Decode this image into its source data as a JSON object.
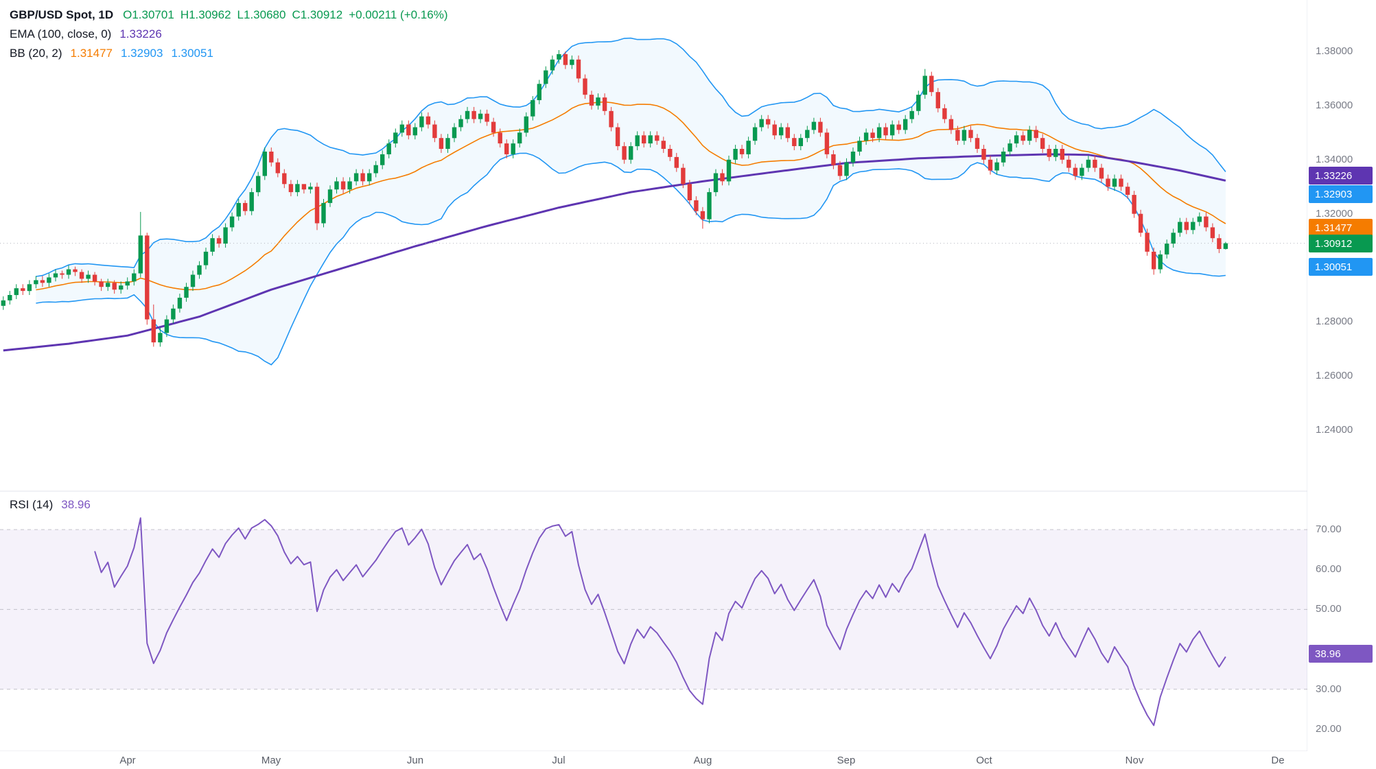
{
  "header": {
    "symbol": "GBP/USD Spot, 1D",
    "o": "O1.30701",
    "h": "H1.30962",
    "l": "L1.30680",
    "c": "C1.30912",
    "change": "+0.00211 (+0.16%)",
    "ema_name": "EMA (100, close, 0)",
    "ema_value": "1.33226",
    "bb_name": "BB (20, 2)",
    "bb_basis": "1.31477",
    "bb_upper": "1.32903",
    "bb_lower": "1.30051"
  },
  "rsi_header": {
    "name": "RSI (14)",
    "value": "38.96"
  },
  "price_axis": {
    "labels": [
      {
        "text": "1.38000",
        "price": 1.38
      },
      {
        "text": "1.36000",
        "price": 1.36
      },
      {
        "text": "1.34000",
        "price": 1.34
      },
      {
        "text": "1.32000",
        "price": 1.32
      },
      {
        "text": "1.28000",
        "price": 1.28
      },
      {
        "text": "1.26000",
        "price": 1.26
      },
      {
        "text": "1.24000",
        "price": 1.24
      }
    ]
  },
  "rsi_axis": {
    "labels": [
      {
        "text": "70.00",
        "value": 70
      },
      {
        "text": "60.00",
        "value": 60
      },
      {
        "text": "50.00",
        "value": 50
      },
      {
        "text": "30.00",
        "value": 30
      },
      {
        "text": "20.00",
        "value": 20
      }
    ]
  },
  "tags": {
    "ema": {
      "text": "1.33226",
      "price": 1.33226,
      "color": "#5e35b1"
    },
    "bb_upper": {
      "text": "1.32903",
      "price": 1.32903,
      "color": "#2196f3"
    },
    "bb_basis": {
      "text": "1.31477",
      "price": 1.31477,
      "color": "#f57c00"
    },
    "last": {
      "text": "1.30912",
      "price": 1.30912,
      "color": "#089950"
    },
    "bb_lower": {
      "text": "1.30051",
      "price": 1.30051,
      "color": "#2196f3"
    },
    "rsi": {
      "text": "38.96",
      "value": 38.96,
      "color": "#7e57c2"
    }
  },
  "colors": {
    "up": "#089950",
    "down": "#e23b3b",
    "bb_line": "#2196f3",
    "bb_fill": "rgba(33,150,243,0.06)",
    "bb_basis": "#f57c00",
    "ema": "#5e35b1",
    "rsi": "#7e57c2",
    "rsi_fill": "rgba(126,87,194,0.08)",
    "axis_text": "#787b86",
    "grid": "#e0e3eb",
    "last_price_line": "#b2b5be"
  },
  "chart_data": {
    "type": "candlestick",
    "title": "GBP/USD Spot, 1D",
    "interval": "1D",
    "ohlc_last": {
      "open": 1.30701,
      "high": 1.30962,
      "low": 1.3068,
      "close": 1.30912,
      "change": 0.00211,
      "change_pct": 0.16
    },
    "price_axis_ticks": [
      1.38,
      1.36,
      1.34,
      1.32,
      1.28,
      1.26,
      1.24
    ],
    "rsi_axis_ticks": [
      70,
      60,
      50,
      30,
      20
    ],
    "x_months": [
      {
        "label": "Apr",
        "index": 19
      },
      {
        "label": "May",
        "index": 41
      },
      {
        "label": "Jun",
        "index": 63
      },
      {
        "label": "Jul",
        "index": 85
      },
      {
        "label": "Aug",
        "index": 107
      },
      {
        "label": "Sep",
        "index": 129
      },
      {
        "label": "Oct",
        "index": 150
      },
      {
        "label": "Nov",
        "index": 173
      },
      {
        "label": "De",
        "index": 195
      }
    ],
    "candles": [
      [
        1.286,
        1.2895,
        1.2845,
        1.288
      ],
      [
        1.288,
        1.2915,
        1.2865,
        1.29
      ],
      [
        1.29,
        1.294,
        1.2885,
        1.2925
      ],
      [
        1.2925,
        1.294,
        1.29,
        1.2915
      ],
      [
        1.2915,
        1.2955,
        1.29,
        1.294
      ],
      [
        1.294,
        1.297,
        1.2925,
        1.2955
      ],
      [
        1.2955,
        1.297,
        1.293,
        1.2945
      ],
      [
        1.2945,
        1.298,
        1.293,
        1.2965
      ],
      [
        1.2965,
        1.2995,
        1.295,
        1.298
      ],
      [
        1.298,
        1.299,
        1.296,
        1.2975
      ],
      [
        1.2975,
        1.301,
        1.296,
        1.2995
      ],
      [
        1.2995,
        1.3005,
        1.297,
        1.2985
      ],
      [
        1.2985,
        1.2995,
        1.2945,
        1.296
      ],
      [
        1.296,
        1.299,
        1.2945,
        1.2975
      ],
      [
        1.2975,
        1.2985,
        1.2935,
        1.295
      ],
      [
        1.295,
        1.296,
        1.2915,
        1.293
      ],
      [
        1.293,
        1.296,
        1.2915,
        1.2945
      ],
      [
        1.2945,
        1.2955,
        1.2905,
        1.292
      ],
      [
        1.292,
        1.295,
        1.2905,
        1.2935
      ],
      [
        1.2935,
        1.2965,
        1.292,
        1.295
      ],
      [
        1.295,
        1.2995,
        1.2935,
        1.298
      ],
      [
        1.298,
        1.3207,
        1.2965,
        1.312
      ],
      [
        1.312,
        1.313,
        1.279,
        1.281
      ],
      [
        1.281,
        1.2865,
        1.2709,
        1.2725
      ],
      [
        1.2725,
        1.278,
        1.2709,
        1.276
      ],
      [
        1.276,
        1.2825,
        1.2745,
        1.281
      ],
      [
        1.281,
        1.2865,
        1.2795,
        1.285
      ],
      [
        1.285,
        1.2905,
        1.2835,
        1.289
      ],
      [
        1.289,
        1.2945,
        1.2875,
        1.293
      ],
      [
        1.293,
        1.299,
        1.2915,
        1.2975
      ],
      [
        1.2975,
        1.3025,
        1.296,
        1.301
      ],
      [
        1.301,
        1.3075,
        1.2995,
        1.306
      ],
      [
        1.306,
        1.3125,
        1.3045,
        1.311
      ],
      [
        1.311,
        1.312,
        1.3075,
        1.309
      ],
      [
        1.309,
        1.3165,
        1.3075,
        1.315
      ],
      [
        1.315,
        1.3205,
        1.3135,
        1.319
      ],
      [
        1.319,
        1.3255,
        1.3175,
        1.324
      ],
      [
        1.324,
        1.325,
        1.3195,
        1.321
      ],
      [
        1.321,
        1.3295,
        1.3195,
        1.328
      ],
      [
        1.328,
        1.3355,
        1.3265,
        1.334
      ],
      [
        1.334,
        1.3445,
        1.3325,
        1.343
      ],
      [
        1.343,
        1.3445,
        1.3375,
        1.339
      ],
      [
        1.339,
        1.3405,
        1.3335,
        1.335
      ],
      [
        1.335,
        1.3365,
        1.3295,
        1.331
      ],
      [
        1.331,
        1.3325,
        1.3265,
        1.328
      ],
      [
        1.328,
        1.3325,
        1.3265,
        1.331
      ],
      [
        1.331,
        1.3305,
        1.3275,
        1.329
      ],
      [
        1.329,
        1.3315,
        1.3275,
        1.33
      ],
      [
        1.33,
        1.3315,
        1.314,
        1.3165
      ],
      [
        1.3165,
        1.3255,
        1.315,
        1.324
      ],
      [
        1.324,
        1.3305,
        1.3225,
        1.329
      ],
      [
        1.329,
        1.3335,
        1.3275,
        1.332
      ],
      [
        1.332,
        1.3335,
        1.3275,
        1.329
      ],
      [
        1.329,
        1.3335,
        1.3275,
        1.332
      ],
      [
        1.332,
        1.3365,
        1.3305,
        1.335
      ],
      [
        1.335,
        1.3365,
        1.3305,
        1.332
      ],
      [
        1.332,
        1.3365,
        1.3305,
        1.335
      ],
      [
        1.335,
        1.3395,
        1.3335,
        1.338
      ],
      [
        1.338,
        1.3435,
        1.3365,
        1.342
      ],
      [
        1.342,
        1.3475,
        1.3405,
        1.346
      ],
      [
        1.346,
        1.3515,
        1.3445,
        1.35
      ],
      [
        1.35,
        1.3545,
        1.3485,
        1.353
      ],
      [
        1.353,
        1.3545,
        1.3475,
        1.349
      ],
      [
        1.349,
        1.3535,
        1.3475,
        1.352
      ],
      [
        1.352,
        1.3575,
        1.3505,
        1.356
      ],
      [
        1.356,
        1.3575,
        1.3515,
        1.353
      ],
      [
        1.353,
        1.3545,
        1.3465,
        1.348
      ],
      [
        1.348,
        1.3495,
        1.3425,
        1.344
      ],
      [
        1.344,
        1.3495,
        1.3425,
        1.348
      ],
      [
        1.348,
        1.3535,
        1.3465,
        1.352
      ],
      [
        1.352,
        1.3565,
        1.3505,
        1.355
      ],
      [
        1.355,
        1.3595,
        1.3535,
        1.358
      ],
      [
        1.358,
        1.3595,
        1.3535,
        1.355
      ],
      [
        1.355,
        1.3585,
        1.3535,
        1.357
      ],
      [
        1.357,
        1.3585,
        1.3525,
        1.354
      ],
      [
        1.354,
        1.3555,
        1.3485,
        1.35
      ],
      [
        1.35,
        1.3515,
        1.3445,
        1.346
      ],
      [
        1.346,
        1.3475,
        1.3405,
        1.342
      ],
      [
        1.342,
        1.3475,
        1.3405,
        1.346
      ],
      [
        1.346,
        1.3515,
        1.3445,
        1.35
      ],
      [
        1.35,
        1.3575,
        1.3485,
        1.356
      ],
      [
        1.356,
        1.3635,
        1.3545,
        1.362
      ],
      [
        1.362,
        1.3695,
        1.3605,
        1.368
      ],
      [
        1.368,
        1.3745,
        1.3665,
        1.373
      ],
      [
        1.373,
        1.3785,
        1.3715,
        1.377
      ],
      [
        1.377,
        1.3805,
        1.3755,
        1.379
      ],
      [
        1.379,
        1.38,
        1.3735,
        1.375
      ],
      [
        1.375,
        1.3785,
        1.3735,
        1.377
      ],
      [
        1.377,
        1.3785,
        1.3685,
        1.37
      ],
      [
        1.37,
        1.3715,
        1.3625,
        1.364
      ],
      [
        1.364,
        1.3655,
        1.3585,
        1.36
      ],
      [
        1.36,
        1.3645,
        1.3585,
        1.363
      ],
      [
        1.363,
        1.3645,
        1.3565,
        1.358
      ],
      [
        1.358,
        1.3595,
        1.3505,
        1.352
      ],
      [
        1.352,
        1.3535,
        1.3435,
        1.345
      ],
      [
        1.345,
        1.3465,
        1.3385,
        1.34
      ],
      [
        1.34,
        1.3465,
        1.3385,
        1.345
      ],
      [
        1.345,
        1.3505,
        1.3435,
        1.349
      ],
      [
        1.349,
        1.3505,
        1.3445,
        1.346
      ],
      [
        1.346,
        1.3505,
        1.3445,
        1.349
      ],
      [
        1.349,
        1.3505,
        1.3455,
        1.347
      ],
      [
        1.347,
        1.3485,
        1.3425,
        1.344
      ],
      [
        1.344,
        1.3455,
        1.3395,
        1.341
      ],
      [
        1.341,
        1.3425,
        1.3355,
        1.337
      ],
      [
        1.337,
        1.3385,
        1.3295,
        1.331
      ],
      [
        1.331,
        1.3325,
        1.3235,
        1.325
      ],
      [
        1.325,
        1.3265,
        1.3195,
        1.321
      ],
      [
        1.321,
        1.3225,
        1.3145,
        1.318
      ],
      [
        1.318,
        1.3295,
        1.3165,
        1.328
      ],
      [
        1.328,
        1.3365,
        1.3265,
        1.335
      ],
      [
        1.335,
        1.3365,
        1.3305,
        1.332
      ],
      [
        1.332,
        1.3415,
        1.3305,
        1.34
      ],
      [
        1.34,
        1.3455,
        1.3385,
        1.344
      ],
      [
        1.344,
        1.3455,
        1.3405,
        1.342
      ],
      [
        1.342,
        1.3485,
        1.3405,
        1.347
      ],
      [
        1.347,
        1.3535,
        1.3455,
        1.352
      ],
      [
        1.352,
        1.3565,
        1.3505,
        1.355
      ],
      [
        1.355,
        1.3565,
        1.3515,
        1.353
      ],
      [
        1.353,
        1.3545,
        1.3475,
        1.349
      ],
      [
        1.349,
        1.3535,
        1.3475,
        1.352
      ],
      [
        1.352,
        1.3535,
        1.3465,
        1.348
      ],
      [
        1.348,
        1.3495,
        1.3435,
        1.345
      ],
      [
        1.345,
        1.3495,
        1.3435,
        1.348
      ],
      [
        1.348,
        1.3525,
        1.3465,
        1.351
      ],
      [
        1.351,
        1.3555,
        1.3495,
        1.354
      ],
      [
        1.354,
        1.3555,
        1.3485,
        1.35
      ],
      [
        1.35,
        1.3515,
        1.3405,
        1.342
      ],
      [
        1.342,
        1.3435,
        1.3365,
        1.338
      ],
      [
        1.338,
        1.3395,
        1.3325,
        1.334
      ],
      [
        1.334,
        1.3405,
        1.3325,
        1.339
      ],
      [
        1.339,
        1.3445,
        1.3375,
        1.343
      ],
      [
        1.343,
        1.3485,
        1.3415,
        1.347
      ],
      [
        1.347,
        1.3515,
        1.3455,
        1.35
      ],
      [
        1.35,
        1.3515,
        1.3465,
        1.348
      ],
      [
        1.348,
        1.3535,
        1.3465,
        1.352
      ],
      [
        1.352,
        1.3535,
        1.3475,
        1.349
      ],
      [
        1.349,
        1.3545,
        1.3475,
        1.353
      ],
      [
        1.353,
        1.3545,
        1.3495,
        1.351
      ],
      [
        1.351,
        1.3565,
        1.3495,
        1.355
      ],
      [
        1.355,
        1.3595,
        1.3535,
        1.358
      ],
      [
        1.358,
        1.3655,
        1.3565,
        1.364
      ],
      [
        1.364,
        1.3735,
        1.3625,
        1.371
      ],
      [
        1.371,
        1.3725,
        1.3635,
        1.365
      ],
      [
        1.365,
        1.3665,
        1.3575,
        1.359
      ],
      [
        1.359,
        1.3605,
        1.3535,
        1.355
      ],
      [
        1.355,
        1.3565,
        1.3495,
        1.351
      ],
      [
        1.351,
        1.3525,
        1.3455,
        1.347
      ],
      [
        1.347,
        1.3525,
        1.3455,
        1.351
      ],
      [
        1.351,
        1.3525,
        1.3465,
        1.348
      ],
      [
        1.348,
        1.3495,
        1.3425,
        1.344
      ],
      [
        1.344,
        1.3455,
        1.3385,
        1.34
      ],
      [
        1.34,
        1.3415,
        1.3345,
        1.336
      ],
      [
        1.336,
        1.3405,
        1.3345,
        1.339
      ],
      [
        1.339,
        1.3445,
        1.3375,
        1.343
      ],
      [
        1.343,
        1.3475,
        1.3415,
        1.346
      ],
      [
        1.346,
        1.3505,
        1.3445,
        1.349
      ],
      [
        1.349,
        1.3505,
        1.3455,
        1.347
      ],
      [
        1.347,
        1.3525,
        1.3455,
        1.351
      ],
      [
        1.351,
        1.3525,
        1.3465,
        1.348
      ],
      [
        1.348,
        1.3495,
        1.3425,
        1.344
      ],
      [
        1.344,
        1.3455,
        1.3395,
        1.341
      ],
      [
        1.341,
        1.3455,
        1.3395,
        1.344
      ],
      [
        1.344,
        1.3455,
        1.3385,
        1.34
      ],
      [
        1.34,
        1.3415,
        1.3355,
        1.337
      ],
      [
        1.337,
        1.3385,
        1.3325,
        1.334
      ],
      [
        1.334,
        1.3385,
        1.3325,
        1.337
      ],
      [
        1.337,
        1.3415,
        1.3355,
        1.34
      ],
      [
        1.34,
        1.3415,
        1.3355,
        1.337
      ],
      [
        1.337,
        1.3385,
        1.3315,
        1.333
      ],
      [
        1.333,
        1.3345,
        1.3285,
        1.33
      ],
      [
        1.33,
        1.3345,
        1.3285,
        1.333
      ],
      [
        1.333,
        1.3345,
        1.3285,
        1.33
      ],
      [
        1.33,
        1.3315,
        1.3255,
        1.327
      ],
      [
        1.327,
        1.3285,
        1.3185,
        1.32
      ],
      [
        1.32,
        1.3215,
        1.3115,
        1.313
      ],
      [
        1.313,
        1.3145,
        1.3045,
        1.306
      ],
      [
        1.306,
        1.3075,
        1.2975,
        1.2995
      ],
      [
        1.2995,
        1.3065,
        1.298,
        1.305
      ],
      [
        1.305,
        1.3105,
        1.3035,
        1.309
      ],
      [
        1.309,
        1.3145,
        1.3075,
        1.313
      ],
      [
        1.313,
        1.3185,
        1.3115,
        1.317
      ],
      [
        1.317,
        1.3185,
        1.3125,
        1.314
      ],
      [
        1.314,
        1.3185,
        1.3125,
        1.317
      ],
      [
        1.317,
        1.3205,
        1.3155,
        1.319
      ],
      [
        1.319,
        1.3205,
        1.3135,
        1.315
      ],
      [
        1.315,
        1.3165,
        1.3095,
        1.311
      ],
      [
        1.311,
        1.3125,
        1.3055,
        1.307
      ],
      [
        1.30701,
        1.30962,
        1.3068,
        1.30912
      ]
    ],
    "indicators": {
      "ema": {
        "type": "EMA",
        "params": [
          100,
          "close",
          0
        ],
        "current": 1.33226,
        "anchors": [
          [
            0,
            1.2695
          ],
          [
            10,
            1.272
          ],
          [
            19,
            1.275
          ],
          [
            30,
            1.282
          ],
          [
            41,
            1.292
          ],
          [
            52,
            1.3
          ],
          [
            63,
            1.308
          ],
          [
            74,
            1.3155
          ],
          [
            85,
            1.3223
          ],
          [
            96,
            1.328
          ],
          [
            107,
            1.332
          ],
          [
            118,
            1.3355
          ],
          [
            129,
            1.3388
          ],
          [
            140,
            1.3405
          ],
          [
            150,
            1.3414
          ],
          [
            160,
            1.342
          ],
          [
            166,
            1.3418
          ],
          [
            173,
            1.3391
          ],
          [
            180,
            1.336
          ],
          [
            187,
            1.33226
          ]
        ]
      },
      "bb": {
        "type": "BollingerBands",
        "period": 20,
        "stddev": 2,
        "basis": 1.31477,
        "upper": 1.32903,
        "lower": 1.30051
      },
      "rsi": {
        "type": "RSI",
        "period": 14,
        "current": 38.96,
        "bands": [
          70,
          50,
          30
        ]
      }
    }
  }
}
